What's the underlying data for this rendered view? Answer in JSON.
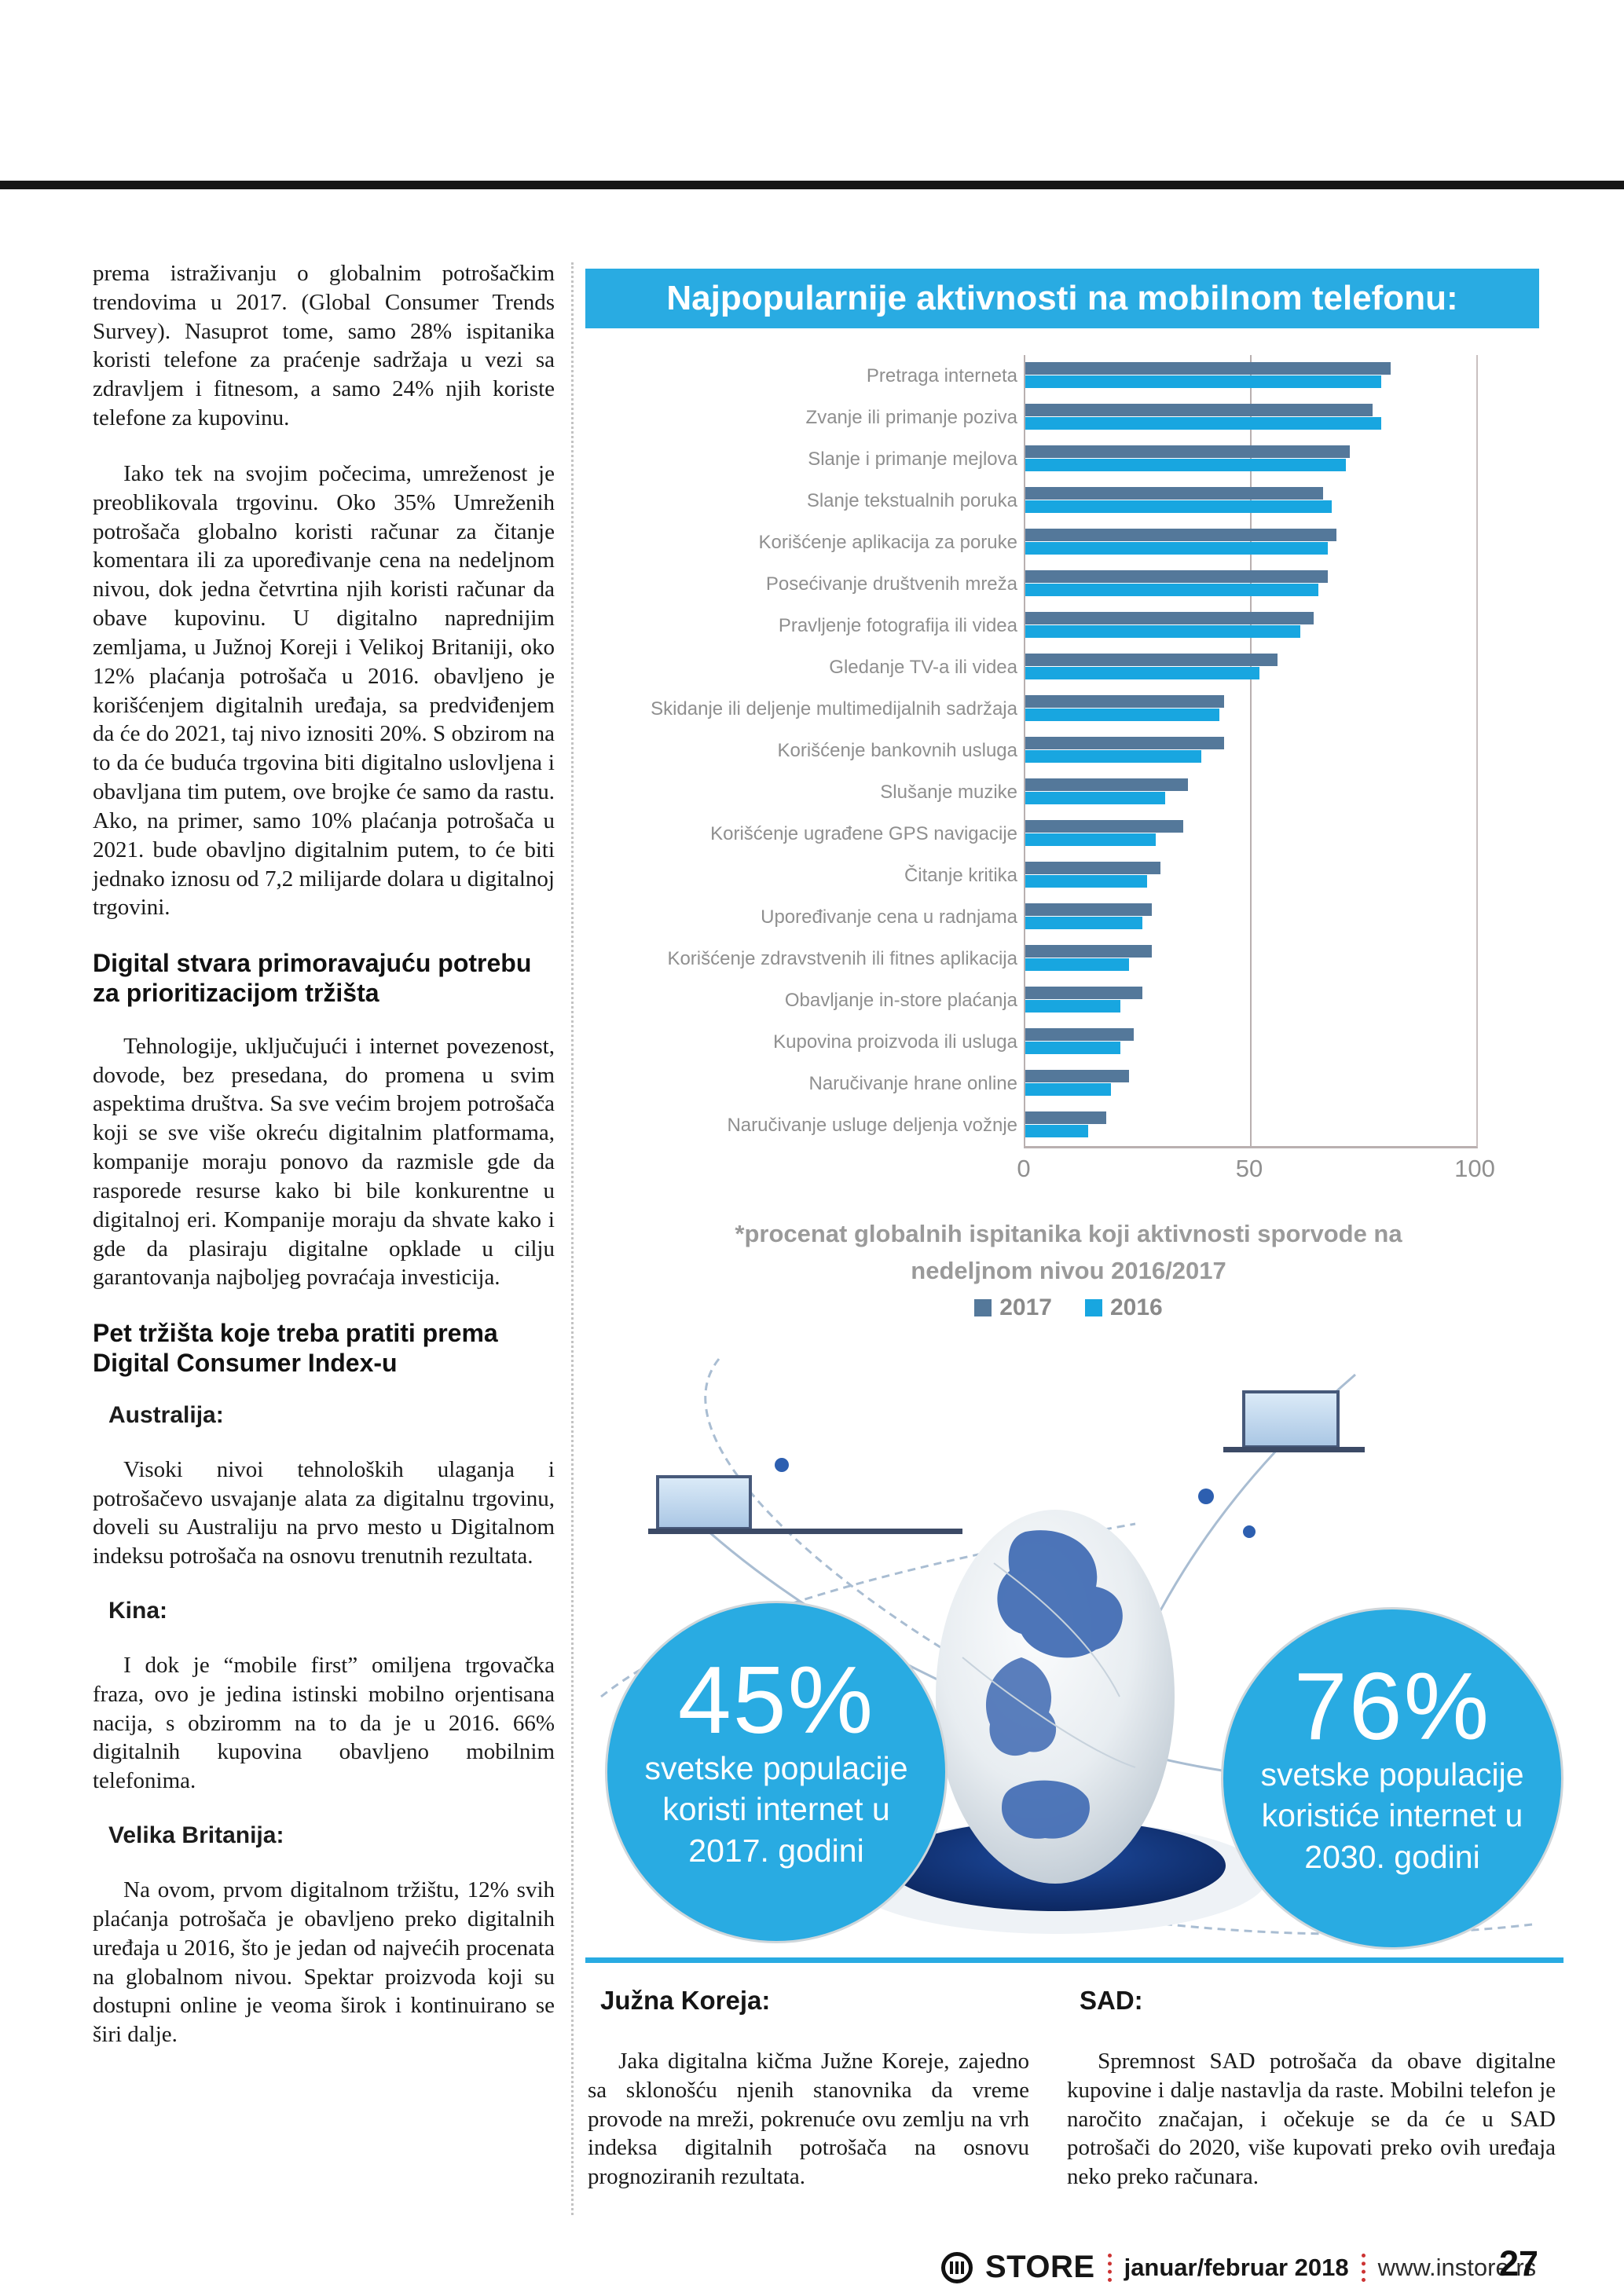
{
  "colors": {
    "accent_blue": "#29abe2",
    "bar_2017": "#54789a",
    "bar_2016": "#18a6e0",
    "label_gray": "#8f8f8f",
    "footer_red": "#cc3333"
  },
  "left_column": {
    "p1": "prema istraživanju o globalnim potrošačkim trendovima u 2017. (Global Consumer Trends Survey). Nasuprot tome, samo 28% ispitanika koristi telefone za praćenje sadržaja u vezi sa zdravljem i fitnesom, a samo 24% njih koriste telefone za kupovinu.",
    "p2": "Iako tek na svojim počecima, umreženost je preoblikovala trgovinu. Oko 35% Umreženih potrošača globalno koristi računar za čitanje komentara ili za upoređivanje cena na nedeljnom nivou, dok jedna četvrtina njih koristi računar da obave kupovinu. U digitalno naprednijim zemljama, u Južnoj Koreji i Velikoj Britaniji, oko 12% plaćanja potrošača u 2016. obavljeno je korišćenjem digitalnih uređaja, sa predviđenjem da će do 2021, taj nivo iznositi 20%. S obzirom na to da će buduća trgovina biti digitalno uslovljena i obavljana tim putem, ove brojke će samo da rastu. Ako, na primer, samo 10% plaćanja potrošača u 2021. bude obavljno digitalnim putem, to će biti jednako iznosu od 7,2 milijarde dolara u digitalnoj trgovini.",
    "h1": "Digital stvara primoravajuću potrebu za prioritizacijom tržišta",
    "p3": "Tehnologije, uključujući i internet povezenost, dovode, bez presedana, do promena u svim aspektima društva. Sa sve većim brojem potrošača koji se sve više okreću digitalnim platformama, kompanije moraju ponovo da razmisle gde da rasporede resurse kako bi bile konkurentne u digitalnoj eri. Kompanije moraju da shvate kako i gde da plasiraju digitalne opklade u cilju garantovanja najboljeg povraćaja investicija.",
    "h2": "Pet tržišta koje treba pratiti prema Digital Consumer Index-u",
    "sections": [
      {
        "heading": "Australija:",
        "text": "Visoki nivoi tehnoloških ulaganja i potrošačevo usvajanje alata za digitalnu trgovinu, doveli su Australiju na prvo mesto u Digitalnom indeksu potrošača na osnovu trenutnih rezultata."
      },
      {
        "heading": "Kina:",
        "text": "I dok je “mobile first” omiljena trgovačka fraza, ovo je jedina istinski mobilno orjentisana nacija, s obziromm na to da je u 2016. 66% digitalnih kupovina obavljeno mobilnim telefonima."
      },
      {
        "heading": "Velika Britanija:",
        "text": "Na ovom, prvom digitalnom tržištu, 12% svih plaćanja potrošača je obavljeno preko digitalnih uređaja u 2016, što je jedan od najvećih procenata na globalnom nivou. Spektar proizvoda koji su dostupni online je veoma širok i kontinuirano se širi dalje."
      }
    ]
  },
  "chart_data": {
    "type": "bar",
    "orientation": "horizontal",
    "title": "Najpopularnije aktivnosti na mobilnom telefonu:",
    "caption": "*procenat globalnih ispitanika koji aktivnosti sporvode na nedeljnom nivou 2016/2017",
    "categories": [
      "Pretraga interneta",
      "Zvanje ili primanje poziva",
      "Slanje i primanje mejlova",
      "Slanje tekstualnih poruka",
      "Korišćenje aplikacija za poruke",
      "Posećivanje društvenih mreža",
      "Pravljenje fotografija ili videa",
      "Gledanje TV-a ili videa",
      "Skidanje ili deljenje multimedijalnih sadržaja",
      "Korišćenje bankovnih usluga",
      "Slušanje muzike",
      "Korišćenje ugrađene GPS navigacije",
      "Čitanje kritika",
      "Upoređivanje cena u radnjama",
      "Korišćenje zdravstvenih ili fitnes aplikacija",
      "Obavljanje in-store plaćanja",
      "Kupovina proizvoda ili usluga",
      "Naručivanje hrane online",
      "Naručivanje usluge deljenja vožnje"
    ],
    "series": [
      {
        "name": "2017",
        "color": "#54789a",
        "values": [
          81,
          77,
          72,
          66,
          69,
          67,
          64,
          56,
          44,
          44,
          36,
          35,
          30,
          28,
          28,
          26,
          24,
          23,
          18
        ]
      },
      {
        "name": "2016",
        "color": "#18a6e0",
        "values": [
          79,
          79,
          71,
          68,
          67,
          65,
          61,
          52,
          43,
          39,
          31,
          29,
          27,
          26,
          23,
          21,
          21,
          19,
          14
        ]
      }
    ],
    "xlim": [
      0,
      100
    ],
    "xticks": [
      0,
      50,
      100
    ],
    "grid": "vertical gridline at 50, frame at 0 and 100",
    "legend_position": "bottom-center",
    "value_unit": "percent of global respondents"
  },
  "infographic": {
    "left_circle": {
      "value": "45%",
      "lines": [
        "svetske populacije",
        "koristi internet u",
        "2017. godini"
      ]
    },
    "right_circle": {
      "value": "76%",
      "lines": [
        "svetske populacije",
        "koristiće internet u",
        "2030. godini"
      ]
    }
  },
  "bottom": {
    "korea": {
      "heading": "Južna Koreja:",
      "text": "Jaka digitalna kičma Južne Koreje, zajedno sa sklonošću njenih stanovnika da vreme provode na mreži, pokrenuće ovu zemlju na vrh indeksa digitalnih potrošača na osnovu prognoziranih rezultata."
    },
    "sad": {
      "heading": "SAD:",
      "text": "Spremnost SAD potrošača da obave digitalne kupovine i dalje nastavlja da raste. Mobilni telefon je naročito značajan, i očekuje se da će u SAD potrošači do 2020, više kupovati preko ovih uređaja neko preko računara."
    }
  },
  "footer": {
    "brand": "STORE",
    "issue": "januar/februar 2018",
    "site": "www.instore.rs",
    "page": "27"
  }
}
